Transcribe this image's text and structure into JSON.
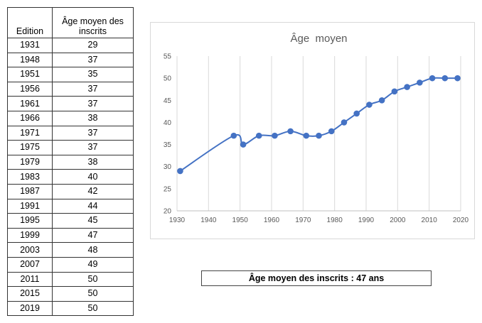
{
  "table": {
    "headers": [
      "Edition",
      "Âge moyen des inscrits"
    ],
    "rows": [
      [
        "1931",
        "29"
      ],
      [
        "1948",
        "37"
      ],
      [
        "1951",
        "35"
      ],
      [
        "1956",
        "37"
      ],
      [
        "1961",
        "37"
      ],
      [
        "1966",
        "38"
      ],
      [
        "1971",
        "37"
      ],
      [
        "1975",
        "37"
      ],
      [
        "1979",
        "38"
      ],
      [
        "1983",
        "40"
      ],
      [
        "1987",
        "42"
      ],
      [
        "1991",
        "44"
      ],
      [
        "1995",
        "45"
      ],
      [
        "1999",
        "47"
      ],
      [
        "2003",
        "48"
      ],
      [
        "2007",
        "49"
      ],
      [
        "2011",
        "50"
      ],
      [
        "2015",
        "50"
      ],
      [
        "2019",
        "50"
      ]
    ]
  },
  "chart_data": {
    "type": "line",
    "title": "Âge  moyen",
    "xlim": [
      1930,
      2020
    ],
    "ylim": [
      20,
      55
    ],
    "xticks": [
      1930,
      1940,
      1950,
      1960,
      1970,
      1980,
      1990,
      2000,
      2010,
      2020
    ],
    "yticks": [
      20,
      25,
      30,
      35,
      40,
      45,
      50,
      55
    ],
    "grid": "vertical",
    "color": "#4472c4",
    "x": [
      1931,
      1948,
      1951,
      1956,
      1961,
      1966,
      1971,
      1975,
      1979,
      1983,
      1987,
      1991,
      1995,
      1999,
      2003,
      2007,
      2011,
      2015,
      2019
    ],
    "y": [
      29,
      37,
      35,
      37,
      37,
      38,
      37,
      37,
      38,
      40,
      42,
      44,
      45,
      47,
      48,
      49,
      50,
      50,
      50
    ]
  },
  "summary": "Âge moyen des inscrits : 47 ans"
}
